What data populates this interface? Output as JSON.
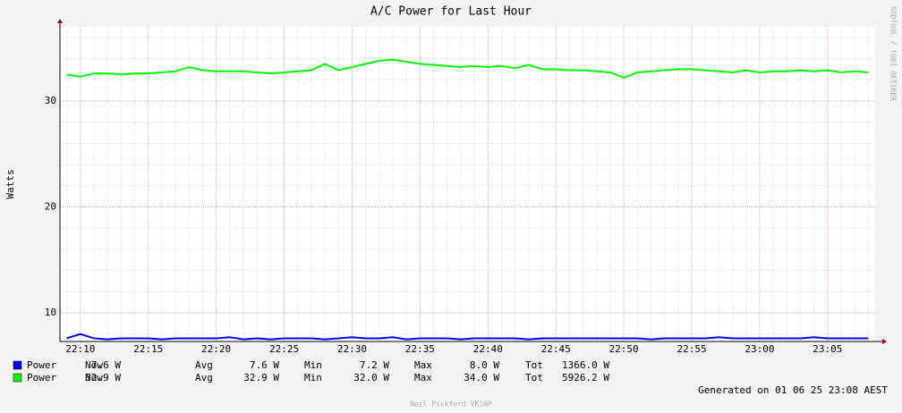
{
  "chart_data": {
    "type": "line",
    "title": "A/C Power for Last Hour",
    "y_label": "Watts",
    "side_text": "RRDTOOL / TOBI OETIKER",
    "categories": [
      null,
      "22:10",
      null,
      null,
      null,
      null,
      "22:15",
      null,
      null,
      null,
      null,
      "22:20",
      null,
      null,
      null,
      null,
      "22:25",
      null,
      null,
      null,
      null,
      "22:30",
      null,
      null,
      null,
      null,
      "22:35",
      null,
      null,
      null,
      null,
      "22:40",
      null,
      null,
      null,
      null,
      "22:45",
      null,
      null,
      null,
      null,
      "22:50",
      null,
      null,
      null,
      null,
      "22:55",
      null,
      null,
      null,
      null,
      "23:00",
      null,
      null,
      null,
      null,
      "23:05",
      null,
      null,
      null
    ],
    "series": [
      {
        "name": "Power",
        "color": "#0000ff",
        "values": [
          7.6,
          8.0,
          7.6,
          7.5,
          7.6,
          7.6,
          7.6,
          7.5,
          7.6,
          7.6,
          7.6,
          7.6,
          7.7,
          7.5,
          7.6,
          7.5,
          7.6,
          7.6,
          7.6,
          7.5,
          7.6,
          7.7,
          7.6,
          7.6,
          7.7,
          7.5,
          7.6,
          7.6,
          7.6,
          7.5,
          7.6,
          7.6,
          7.6,
          7.6,
          7.5,
          7.6,
          7.6,
          7.6,
          7.6,
          7.6,
          7.6,
          7.6,
          7.6,
          7.5,
          7.6,
          7.6,
          7.6,
          7.6,
          7.7,
          7.6,
          7.6,
          7.6,
          7.6,
          7.6,
          7.6,
          7.7,
          7.6,
          7.6,
          7.6,
          7.6
        ],
        "stats": [
          7.6,
          7.6,
          7.2,
          8.0,
          1366.0
        ],
        "stats_labels": [
          "7.6 W",
          "7.6 W",
          "7.2 W",
          "8.0 W",
          "1366.0 W"
        ]
      },
      {
        "name": "Power",
        "color": "#00ff00",
        "values": [
          32.5,
          32.3,
          32.6,
          32.6,
          32.5,
          32.6,
          32.6,
          32.7,
          32.8,
          33.2,
          32.9,
          32.8,
          32.8,
          32.8,
          32.7,
          32.6,
          32.7,
          32.8,
          32.9,
          33.5,
          32.9,
          33.2,
          33.5,
          33.8,
          33.9,
          33.7,
          33.5,
          33.4,
          33.3,
          33.2,
          33.3,
          33.2,
          33.3,
          33.1,
          33.4,
          33.0,
          33.0,
          32.9,
          32.9,
          32.8,
          32.7,
          32.2,
          32.7,
          32.8,
          32.9,
          33.0,
          33.0,
          32.9,
          32.8,
          32.7,
          32.9,
          32.7,
          32.8,
          32.8,
          32.9,
          32.8,
          32.9,
          32.7,
          32.8,
          32.7
        ],
        "stats": [
          32.9,
          32.9,
          32.0,
          34.0,
          5926.2
        ],
        "stats_labels": [
          "32.9 W",
          "32.9 W",
          "32.0 W",
          "34.0 W",
          "5926.2 W"
        ]
      }
    ],
    "stat_names": [
      "Now",
      "Avg",
      "Min",
      "Max",
      "Tot"
    ],
    "ylim": [
      7.3,
      37
    ],
    "yticks": [
      10,
      20,
      30
    ],
    "minor_yticks": [
      8,
      12,
      14,
      16,
      18,
      22,
      24,
      26,
      28,
      32,
      34,
      36
    ],
    "grid": true,
    "footer": "Generated on 01 06 25 23:08 AEST",
    "credit": "Neil Pickford VK1NP"
  }
}
